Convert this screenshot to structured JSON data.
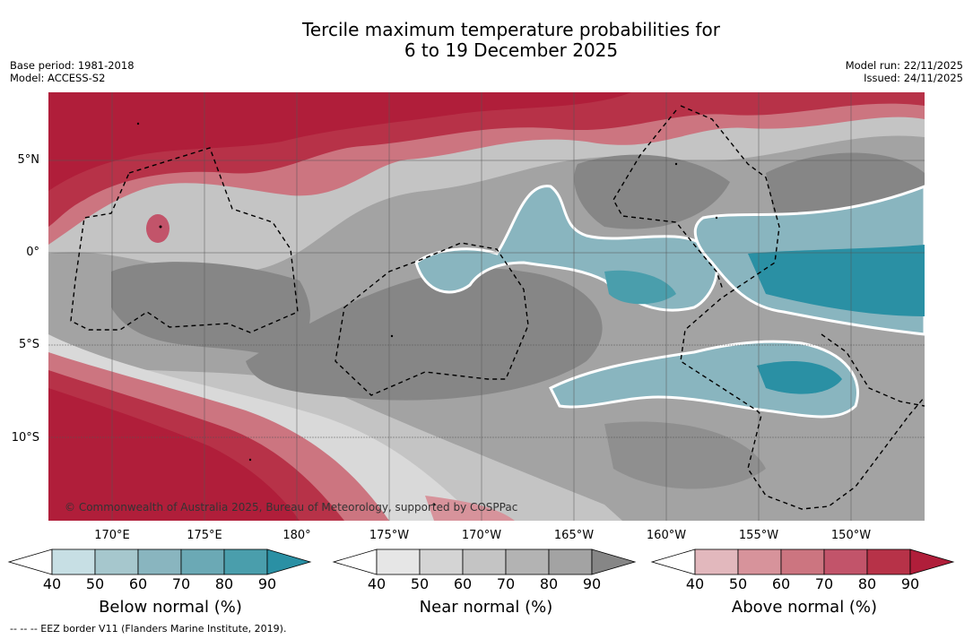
{
  "title": {
    "line1": "Tercile maximum temperature probabilities for",
    "line2": "6 to 19 December 2025"
  },
  "meta_left": {
    "base_period": "Base period: 1981-2018",
    "model": "Model: ACCESS-S2"
  },
  "meta_right": {
    "model_run": "Model run: 22/11/2025",
    "issued": "Issued: 24/11/2025"
  },
  "map": {
    "lat_labels": [
      "5°N",
      "0°",
      "5°S",
      "10°S"
    ],
    "lon_labels": [
      "170°E",
      "175°E",
      "180°",
      "175°W",
      "170°W",
      "165°W",
      "160°W",
      "155°W",
      "150°W"
    ],
    "copyright": "© Commonwealth of Australia 2025, Bureau of Meteorology, supported by COSPPac"
  },
  "legend": {
    "below": {
      "title": "Below normal (%)",
      "ticks": [
        "40",
        "50",
        "60",
        "70",
        "80",
        "90"
      ],
      "colors": [
        "#ffffff",
        "#c7dfe4",
        "#a6c7cd",
        "#89b5bf",
        "#6ba9b5",
        "#4a9eac",
        "#2a90a4"
      ]
    },
    "near": {
      "title": "Near normal (%)",
      "ticks": [
        "40",
        "50",
        "60",
        "70",
        "80",
        "90"
      ],
      "colors": [
        "#ffffff",
        "#e6e6e6",
        "#d4d4d4",
        "#c4c4c4",
        "#b3b3b3",
        "#a3a3a3",
        "#868686"
      ]
    },
    "above": {
      "title": "Above normal (%)",
      "ticks": [
        "40",
        "50",
        "60",
        "70",
        "80",
        "90"
      ],
      "colors": [
        "#ffffff",
        "#e2b8bd",
        "#d7939b",
        "#cc7580",
        "#c2546a",
        "#b73248",
        "#b01e3a"
      ]
    }
  },
  "footnote": "--  --  -- EEZ border V11 (Flanders Marine Institute, 2019)."
}
